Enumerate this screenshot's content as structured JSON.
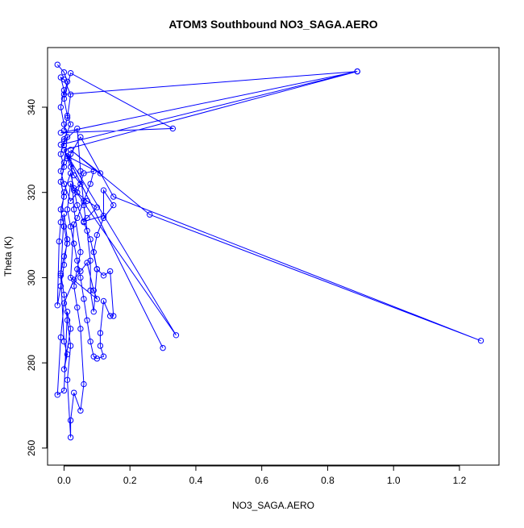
{
  "chart_data": {
    "type": "line",
    "title": "ATOM3 Southbound NO3_SAGA.AERO",
    "xlabel": "NO3_SAGA.AERO",
    "ylabel": "Theta (K)",
    "xlim": [
      -0.05,
      1.32
    ],
    "ylim": [
      256,
      354
    ],
    "x_ticks": [
      0.0,
      0.2,
      0.4,
      0.6,
      0.8,
      1.0,
      1.2
    ],
    "x_tick_labels": [
      "0.0",
      "0.2",
      "0.4",
      "0.6",
      "0.8",
      "1.0",
      "1.2"
    ],
    "y_ticks": [
      260,
      280,
      300,
      320,
      340
    ],
    "y_tick_labels": [
      "260",
      "280",
      "300",
      "320",
      "340"
    ],
    "grid": false,
    "legend": "none",
    "marker": "open-circle",
    "colors": {
      "series": "#0000ff",
      "axis": "#000000",
      "background": "#ffffff"
    },
    "series": [
      {
        "values": [
          [
            -0.02,
            350.0
          ],
          [
            0.0,
            348.2
          ],
          [
            0.01,
            346.0
          ],
          [
            0.0,
            343.0
          ],
          [
            0.89,
            348.4
          ],
          [
            -0.01,
            334.0
          ],
          [
            0.33,
            335.0
          ],
          [
            0.02,
            348.0
          ],
          [
            0.0,
            342.0
          ],
          [
            0.01,
            338.0
          ],
          [
            0.02,
            336.0
          ],
          [
            0.0,
            332.5
          ],
          [
            0.0,
            331.0
          ],
          [
            -0.01,
            331.2
          ],
          [
            0.89,
            348.4
          ],
          [
            0.0,
            330.0
          ],
          [
            0.01,
            328.0
          ],
          [
            0.02,
            326.0
          ],
          [
            0.03,
            324.0
          ],
          [
            0.05,
            322.0
          ],
          [
            0.03,
            320.5
          ],
          [
            0.07,
            318.0
          ],
          [
            0.1,
            316.5
          ],
          [
            0.07,
            314.0
          ],
          [
            0.06,
            313.2
          ],
          [
            0.12,
            314.5
          ],
          [
            0.12,
            320.5
          ],
          [
            0.15,
            317.0
          ],
          [
            0.12,
            314.0
          ],
          [
            0.1,
            310.0
          ],
          [
            0.09,
            306.0
          ],
          [
            0.1,
            302.0
          ],
          [
            0.12,
            300.5
          ],
          [
            0.14,
            301.5
          ],
          [
            0.15,
            291.0
          ],
          [
            0.14,
            291.0
          ],
          [
            0.12,
            294.5
          ],
          [
            0.11,
            287.0
          ],
          [
            0.11,
            284.0
          ],
          [
            0.12,
            281.5
          ],
          [
            0.1,
            281.0
          ],
          [
            0.09,
            281.5
          ],
          [
            0.08,
            285.0
          ],
          [
            0.07,
            290.0
          ],
          [
            0.06,
            295.0
          ],
          [
            0.05,
            300.0
          ],
          [
            0.04,
            304.0
          ],
          [
            0.03,
            308.0
          ],
          [
            0.02,
            312.0
          ],
          [
            0.01,
            316.0
          ],
          [
            0.02,
            322.0
          ],
          [
            0.34,
            286.5
          ],
          [
            0.0,
            330.0
          ],
          [
            0.3,
            283.5
          ],
          [
            0.01,
            328.5
          ],
          [
            0.11,
            324.5
          ],
          [
            0.02,
            330.0
          ],
          [
            0.26,
            314.8
          ],
          [
            1.265,
            285.2
          ],
          [
            0.15,
            319.0
          ],
          [
            0.05,
            333.0
          ],
          [
            0.02,
            329.0
          ],
          [
            0.03,
            316.0
          ],
          [
            0.05,
            306.0
          ],
          [
            0.04,
            302.0
          ],
          [
            0.03,
            298.0
          ],
          [
            0.04,
            293.0
          ],
          [
            0.05,
            288.0
          ],
          [
            0.06,
            275.0
          ],
          [
            0.05,
            268.8
          ],
          [
            0.03,
            273.0
          ],
          [
            0.02,
            266.5
          ],
          [
            0.02,
            262.5
          ],
          [
            0.01,
            276.0
          ],
          [
            0.02,
            284.0
          ],
          [
            0.01,
            290.0
          ],
          [
            0.0,
            296.0
          ],
          [
            -0.01,
            301.0
          ],
          [
            0.0,
            305.0
          ],
          [
            0.01,
            308.0
          ],
          [
            0.0,
            312.0
          ],
          [
            -0.01,
            316.0
          ],
          [
            0.0,
            319.0
          ],
          [
            -0.01,
            322.5
          ],
          [
            0.0,
            326.0
          ],
          [
            -0.01,
            329.0
          ],
          [
            0.0,
            332.0
          ],
          [
            0.04,
            335.0
          ],
          [
            0.05,
            325.0
          ],
          [
            0.06,
            317.0
          ],
          [
            0.07,
            311.0
          ],
          [
            0.08,
            304.0
          ],
          [
            0.08,
            297.0
          ],
          [
            0.09,
            292.0
          ],
          [
            0.1,
            302.0
          ],
          [
            0.08,
            309.0
          ],
          [
            0.06,
            313.0
          ],
          [
            0.04,
            317.0
          ],
          [
            0.03,
            321.0
          ],
          [
            0.02,
            324.5
          ],
          [
            0.0,
            320.0
          ],
          [
            -0.01,
            313.0
          ],
          [
            -0.015,
            308.5
          ],
          [
            -0.02,
            293.5
          ],
          [
            -0.01,
            298.0
          ],
          [
            0.0,
            303.0
          ],
          [
            0.01,
            309.0
          ],
          [
            0.0,
            315.0
          ],
          [
            -0.01,
            300.5
          ],
          [
            0.0,
            285.0
          ],
          [
            0.01,
            282.0
          ],
          [
            0.0,
            278.5
          ],
          [
            0.02,
            288.0
          ],
          [
            0.01,
            292.0
          ],
          [
            0.0,
            273.5
          ],
          [
            -0.02,
            272.5
          ],
          [
            -0.01,
            286.0
          ],
          [
            0.0,
            294.0
          ],
          [
            0.03,
            299.5
          ],
          [
            0.05,
            301.5
          ],
          [
            0.07,
            303.5
          ],
          [
            0.09,
            297.0
          ],
          [
            0.1,
            295.0
          ],
          [
            0.02,
            300.0
          ],
          [
            0.03,
            312.5
          ],
          [
            0.04,
            314.0
          ],
          [
            0.06,
            318.0
          ],
          [
            0.08,
            322.0
          ],
          [
            0.09,
            325.0
          ],
          [
            0.06,
            324.5
          ],
          [
            0.04,
            320.0
          ],
          [
            0.02,
            318.0
          ],
          [
            0.0,
            322.0
          ],
          [
            -0.01,
            325.0
          ],
          [
            0.0,
            327.0
          ],
          [
            0.01,
            333.0
          ],
          [
            0.0,
            336.0
          ],
          [
            -0.01,
            340.0
          ],
          [
            0.0,
            344.0
          ],
          [
            -0.01,
            347.0
          ],
          [
            0.0,
            346.5
          ],
          [
            0.02,
            343.0
          ],
          [
            0.01,
            337.5
          ],
          [
            0.0,
            334.5
          ]
        ]
      }
    ]
  }
}
